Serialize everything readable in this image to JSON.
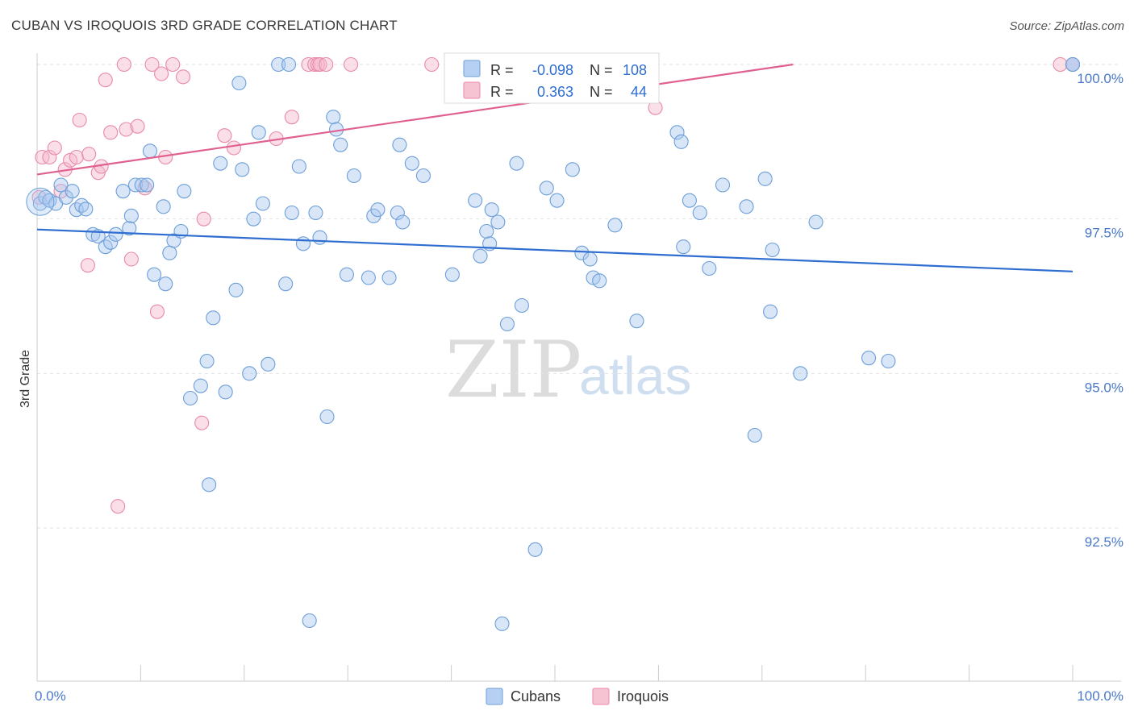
{
  "chart_data": {
    "type": "scatter",
    "title": "CUBAN VS IROQUOIS 3RD GRADE CORRELATION CHART",
    "source": "Source: ZipAtlas.com",
    "ylabel": "3rd Grade",
    "xlabel": "",
    "xlim": [
      0,
      100
    ],
    "ylim": [
      90.2,
      100.4
    ],
    "x_ticks": [
      {
        "value": 0,
        "label": "0.0%"
      },
      {
        "value": 100,
        "label": "100.0%"
      }
    ],
    "y_ticks": [
      {
        "value": 100,
        "label": "100.0%"
      },
      {
        "value": 97.5,
        "label": "97.5%"
      },
      {
        "value": 95,
        "label": "95.0%"
      },
      {
        "value": 92.5,
        "label": "92.5%"
      }
    ],
    "grid": true,
    "legend": {
      "placement": "top-center",
      "rows": [
        {
          "r_label": "R =",
          "r_value": "-0.098",
          "n_label": "N =",
          "n_value": "108",
          "color": "#a8c8f0"
        },
        {
          "r_label": "R =",
          "r_value": "0.363",
          "n_label": "N =",
          "n_value": "44",
          "color": "#f5b8cb"
        }
      ]
    },
    "bottom_legend": [
      "Cubans",
      "Iroquois"
    ],
    "watermark": {
      "zip": "ZIP",
      "atlas": "atlas"
    },
    "series": [
      {
        "name": "Cubans",
        "color": "#a8c8f0",
        "stroke": "#6d9fd8",
        "trend": {
          "x": [
            0,
            100
          ],
          "y": [
            97.33,
            96.65
          ],
          "color": "#2f6ed0"
        },
        "points": [
          [
            0.3,
            97.75
          ],
          [
            0.8,
            97.85
          ],
          [
            1.2,
            97.8
          ],
          [
            1.8,
            97.75
          ],
          [
            2.3,
            98.05
          ],
          [
            2.8,
            97.85
          ],
          [
            3.4,
            97.95
          ],
          [
            3.8,
            97.65
          ],
          [
            4.3,
            97.72
          ],
          [
            4.7,
            97.66
          ],
          [
            5.4,
            97.25
          ],
          [
            5.9,
            97.22
          ],
          [
            6.6,
            97.05
          ],
          [
            7.1,
            97.12
          ],
          [
            7.6,
            97.25
          ],
          [
            8.3,
            97.95
          ],
          [
            8.9,
            97.35
          ],
          [
            9.1,
            97.55
          ],
          [
            9.5,
            98.05
          ],
          [
            10.1,
            98.05
          ],
          [
            10.6,
            98.05
          ],
          [
            10.9,
            98.6
          ],
          [
            11.3,
            96.6
          ],
          [
            12.2,
            97.7
          ],
          [
            12.4,
            96.45
          ],
          [
            12.8,
            96.95
          ],
          [
            13.2,
            97.15
          ],
          [
            13.9,
            97.3
          ],
          [
            14.2,
            97.95
          ],
          [
            14.8,
            94.6
          ],
          [
            15.8,
            94.8
          ],
          [
            16.4,
            95.2
          ],
          [
            16.6,
            93.2
          ],
          [
            17.0,
            95.9
          ],
          [
            17.7,
            98.4
          ],
          [
            18.2,
            94.7
          ],
          [
            19.2,
            96.35
          ],
          [
            19.5,
            99.7
          ],
          [
            19.8,
            98.3
          ],
          [
            20.5,
            95.0
          ],
          [
            20.9,
            97.5
          ],
          [
            21.4,
            98.9
          ],
          [
            21.8,
            97.75
          ],
          [
            22.3,
            95.15
          ],
          [
            23.3,
            100.0
          ],
          [
            24.0,
            96.45
          ],
          [
            24.3,
            100.0
          ],
          [
            24.6,
            97.6
          ],
          [
            25.3,
            98.35
          ],
          [
            25.7,
            97.1
          ],
          [
            26.3,
            91.0
          ],
          [
            26.9,
            97.6
          ],
          [
            27.3,
            97.2
          ],
          [
            28.0,
            94.3
          ],
          [
            28.6,
            99.15
          ],
          [
            28.9,
            98.95
          ],
          [
            29.3,
            98.7
          ],
          [
            29.9,
            96.6
          ],
          [
            30.6,
            98.2
          ],
          [
            32.0,
            96.55
          ],
          [
            32.5,
            97.55
          ],
          [
            32.9,
            97.65
          ],
          [
            34.0,
            96.55
          ],
          [
            34.8,
            97.6
          ],
          [
            35.0,
            98.7
          ],
          [
            35.3,
            97.45
          ],
          [
            36.2,
            98.4
          ],
          [
            37.3,
            98.2
          ],
          [
            40.1,
            96.6
          ],
          [
            42.3,
            97.8
          ],
          [
            42.8,
            96.9
          ],
          [
            43.4,
            97.3
          ],
          [
            43.7,
            97.1
          ],
          [
            43.9,
            97.65
          ],
          [
            44.5,
            97.45
          ],
          [
            44.9,
            90.95
          ],
          [
            45.4,
            95.8
          ],
          [
            46.3,
            98.4
          ],
          [
            46.8,
            96.1
          ],
          [
            48.1,
            92.15
          ],
          [
            49.2,
            98.0
          ],
          [
            50.2,
            97.8
          ],
          [
            51.7,
            98.3
          ],
          [
            52.6,
            96.95
          ],
          [
            53.4,
            96.85
          ],
          [
            53.7,
            96.55
          ],
          [
            54.3,
            96.5
          ],
          [
            55.8,
            97.4
          ],
          [
            57.9,
            95.85
          ],
          [
            61.8,
            98.9
          ],
          [
            62.2,
            98.75
          ],
          [
            62.4,
            97.05
          ],
          [
            63.0,
            97.8
          ],
          [
            64.0,
            97.6
          ],
          [
            64.9,
            96.7
          ],
          [
            66.2,
            98.05
          ],
          [
            68.5,
            97.7
          ],
          [
            69.3,
            94.0
          ],
          [
            70.3,
            98.15
          ],
          [
            70.8,
            96.0
          ],
          [
            71.0,
            97.0
          ],
          [
            73.7,
            95.0
          ],
          [
            75.2,
            97.45
          ],
          [
            80.3,
            95.25
          ],
          [
            82.2,
            95.2
          ],
          [
            100.0,
            100.0
          ],
          [
            100.0,
            100.0
          ],
          [
            56.9,
            100.0
          ]
        ]
      },
      {
        "name": "Iroquois",
        "color": "#f5b8cb",
        "stroke": "#e88aa8",
        "trend": {
          "x": [
            0,
            73
          ],
          "y": [
            98.22,
            100.0
          ],
          "color": "#e06090"
        },
        "points": [
          [
            0.2,
            97.85
          ],
          [
            0.5,
            98.5
          ],
          [
            1.2,
            98.5
          ],
          [
            1.7,
            98.65
          ],
          [
            2.3,
            97.95
          ],
          [
            2.7,
            98.3
          ],
          [
            3.2,
            98.45
          ],
          [
            3.8,
            98.5
          ],
          [
            4.1,
            99.1
          ],
          [
            4.9,
            96.75
          ],
          [
            5.0,
            98.55
          ],
          [
            5.9,
            98.25
          ],
          [
            6.2,
            98.35
          ],
          [
            6.6,
            99.75
          ],
          [
            7.1,
            98.9
          ],
          [
            7.8,
            92.85
          ],
          [
            8.4,
            100.0
          ],
          [
            8.6,
            98.95
          ],
          [
            9.1,
            96.85
          ],
          [
            9.7,
            99.0
          ],
          [
            10.4,
            98.0
          ],
          [
            11.1,
            100.0
          ],
          [
            11.6,
            96.0
          ],
          [
            12.0,
            99.85
          ],
          [
            12.4,
            98.5
          ],
          [
            13.1,
            100.0
          ],
          [
            14.1,
            99.8
          ],
          [
            15.9,
            94.2
          ],
          [
            16.1,
            97.5
          ],
          [
            18.1,
            98.85
          ],
          [
            19.0,
            98.65
          ],
          [
            23.1,
            98.8
          ],
          [
            24.6,
            99.15
          ],
          [
            26.2,
            100.0
          ],
          [
            26.8,
            100.0
          ],
          [
            27.1,
            100.0
          ],
          [
            27.3,
            100.0
          ],
          [
            27.9,
            100.0
          ],
          [
            30.3,
            100.0
          ],
          [
            38.1,
            100.0
          ],
          [
            49.2,
            100.0
          ],
          [
            59.7,
            99.3
          ],
          [
            98.8,
            100.0
          ],
          [
            100.0,
            100.0
          ]
        ]
      }
    ]
  }
}
